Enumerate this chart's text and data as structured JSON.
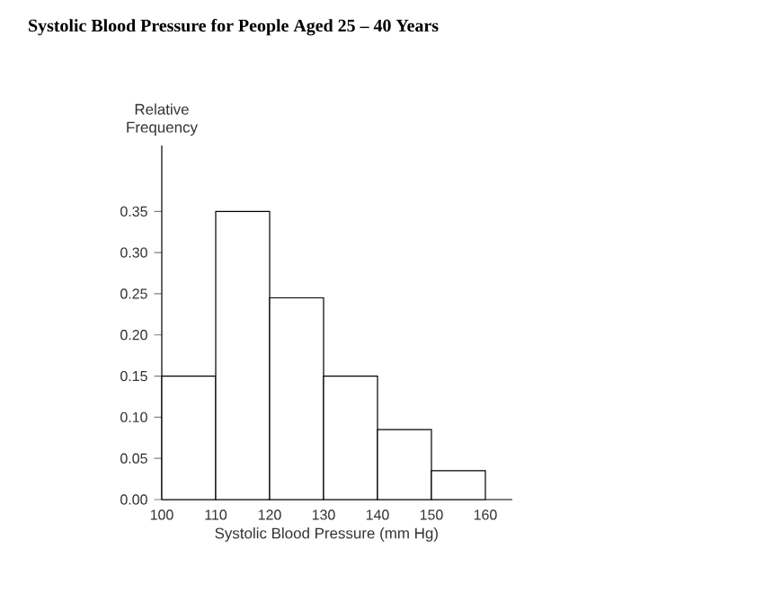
{
  "chart_data": {
    "type": "histogram",
    "title": "Systolic Blood Pressure for People Aged 25 – 40 Years",
    "xlabel": "Systolic Blood Pressure (mm Hg)",
    "ylabel": "Relative Frequency",
    "bins": [
      100,
      110,
      120,
      130,
      140,
      150,
      160
    ],
    "values": [
      0.15,
      0.35,
      0.245,
      0.15,
      0.085,
      0.035
    ],
    "color": "#ffffff",
    "xlim": [
      100,
      165
    ],
    "xticks": [
      100,
      110,
      120,
      130,
      140,
      150,
      160
    ],
    "ylim": [
      0,
      0.43
    ],
    "yticks": [
      {
        "value": 0,
        "label": "0.00"
      },
      {
        "value": 0.05,
        "label": "0.05"
      },
      {
        "value": 0.1,
        "label": "0.10"
      },
      {
        "value": 0.15,
        "label": "0.15"
      },
      {
        "value": 0.2,
        "label": "0.20"
      },
      {
        "value": 0.25,
        "label": "0.25"
      },
      {
        "value": 0.3,
        "label": "0.30"
      },
      {
        "value": 0.35,
        "label": "0.35"
      }
    ]
  }
}
